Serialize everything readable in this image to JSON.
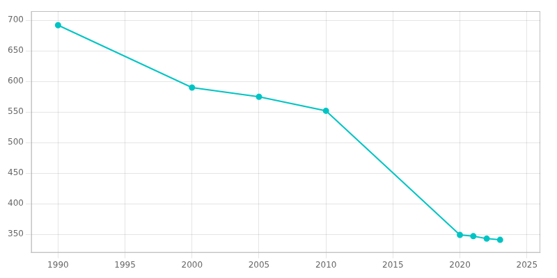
{
  "chart_data": {
    "type": "line",
    "x": [
      1990,
      2000,
      2005,
      2010,
      2020,
      2021,
      2022,
      2023
    ],
    "values": [
      692,
      590,
      575,
      552,
      349,
      347,
      343,
      341
    ],
    "color": "#00C4C4",
    "marker": "circle",
    "xlim": [
      1988,
      2026
    ],
    "ylim": [
      320,
      715
    ],
    "xticks": [
      1990,
      1995,
      2000,
      2005,
      2010,
      2015,
      2020,
      2025
    ],
    "yticks": [
      350,
      400,
      450,
      500,
      550,
      600,
      650,
      700
    ],
    "grid": true
  }
}
